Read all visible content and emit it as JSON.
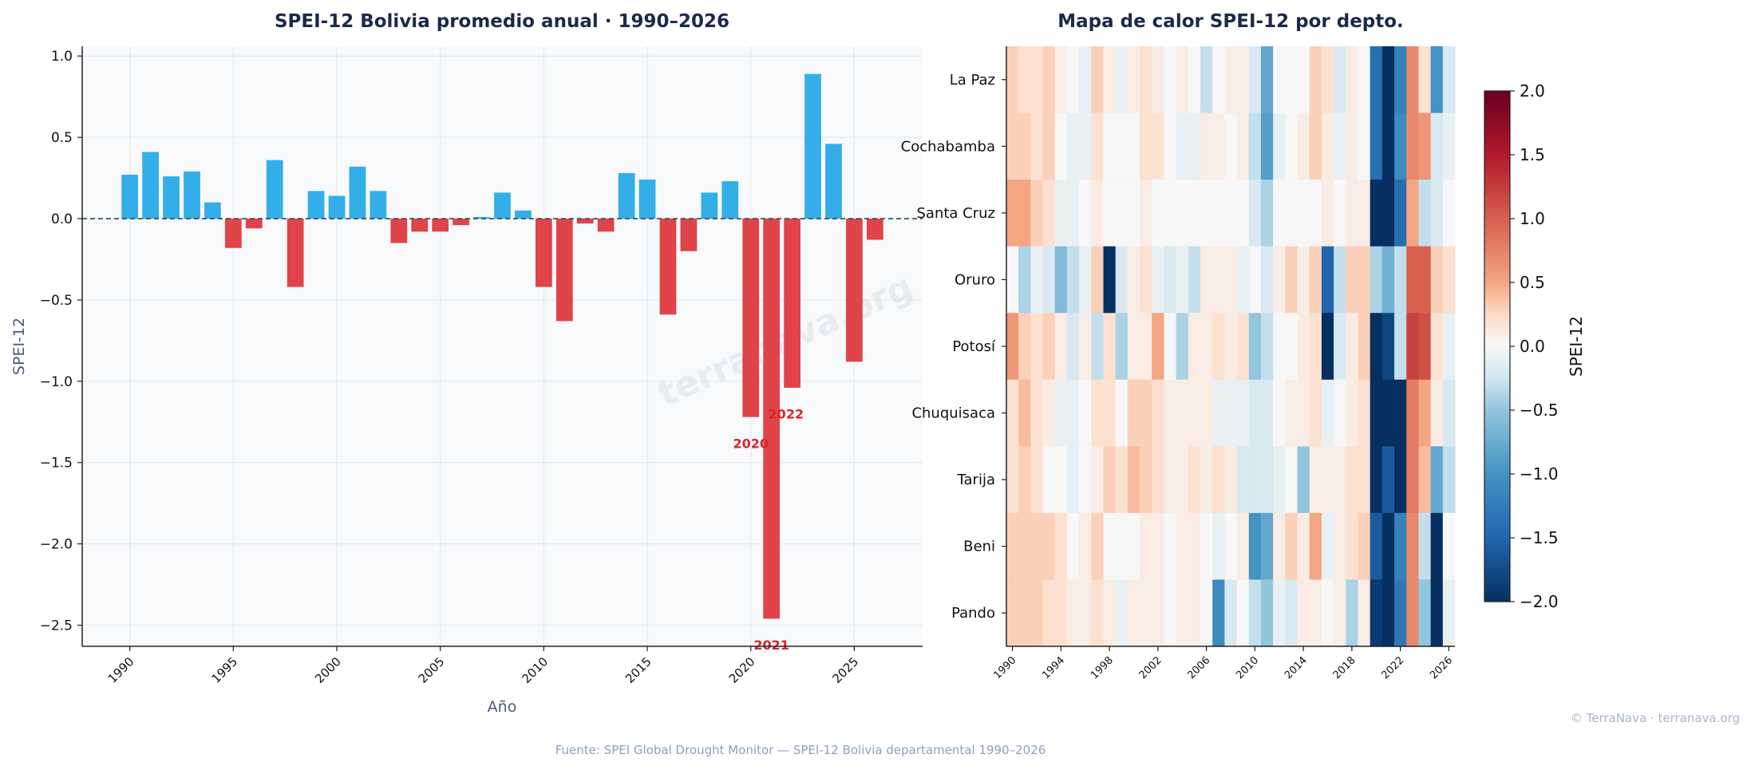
{
  "chart_data": [
    {
      "type": "bar",
      "title": "SPEI-12 Bolivia promedio anual · 1990–2026",
      "xlabel": "Año",
      "ylabel": "SPEI-12",
      "xlim": [
        1987.7,
        2028.3
      ],
      "ylim": [
        -2.63,
        1.06
      ],
      "x_ticks": [
        1990,
        1995,
        2000,
        2005,
        2010,
        2015,
        2020,
        2025
      ],
      "y_ticks": [
        1.0,
        0.5,
        0.0,
        -0.5,
        -1.0,
        -1.5,
        -2.0,
        -2.5
      ],
      "y_tick_labels": [
        "1.0",
        "0.5",
        "0.0",
        "−0.5",
        "−1.0",
        "−1.5",
        "−2.0",
        "−2.5"
      ],
      "grid": true,
      "reference_line": 0,
      "colors": {
        "positive": "#33aee8",
        "negative": "#e04448",
        "zero_line": "#34495e",
        "annotation": "#d62728"
      },
      "x": [
        1990,
        1991,
        1992,
        1993,
        1994,
        1995,
        1996,
        1997,
        1998,
        1999,
        2000,
        2001,
        2002,
        2003,
        2004,
        2005,
        2006,
        2007,
        2008,
        2009,
        2010,
        2011,
        2012,
        2013,
        2014,
        2015,
        2016,
        2017,
        2018,
        2019,
        2020,
        2021,
        2022,
        2023,
        2024,
        2025,
        2026
      ],
      "values": [
        0.27,
        0.41,
        0.26,
        0.29,
        0.1,
        -0.18,
        -0.06,
        0.36,
        -0.42,
        0.17,
        0.14,
        0.32,
        0.17,
        -0.15,
        -0.08,
        -0.08,
        -0.04,
        0.01,
        0.16,
        0.05,
        -0.42,
        -0.63,
        -0.03,
        -0.08,
        0.28,
        0.24,
        -0.59,
        -0.2,
        0.16,
        0.23,
        -1.22,
        -2.46,
        -1.04,
        0.89,
        0.46,
        -0.88,
        -0.13
      ],
      "annotations": [
        {
          "label": "2020",
          "x": 2020,
          "y": -1.41
        },
        {
          "label": "2021",
          "x": 2021,
          "y": -2.65
        },
        {
          "label": "2022",
          "x": 2021.7,
          "y": -1.23
        }
      ],
      "watermark": "terranava.org"
    },
    {
      "type": "heatmap",
      "title": "Mapa de calor SPEI-12 por depto.",
      "colorbar_label": "SPEI-12",
      "colorbar_range": [
        -2.0,
        2.0
      ],
      "colorbar_ticks": [
        2.0,
        1.5,
        1.0,
        0.5,
        0.0,
        -0.5,
        -1.0,
        -1.5,
        -2.0
      ],
      "colorbar_tick_labels": [
        "2.0",
        "1.5",
        "1.0",
        "0.5",
        "0.0",
        "−0.5",
        "−1.0",
        "−1.5",
        "−2.0"
      ],
      "colormap": "RdBu_r",
      "x_ticks": [
        1990,
        1994,
        1998,
        2002,
        2006,
        2010,
        2014,
        2018,
        2022,
        2026
      ],
      "x": [
        1990,
        1991,
        1992,
        1993,
        1994,
        1995,
        1996,
        1997,
        1998,
        1999,
        2000,
        2001,
        2002,
        2003,
        2004,
        2005,
        2006,
        2007,
        2008,
        2009,
        2010,
        2011,
        2012,
        2013,
        2014,
        2015,
        2016,
        2017,
        2018,
        2019,
        2020,
        2021,
        2022,
        2023,
        2024,
        2025,
        2026
      ],
      "rows": [
        "La Paz",
        "Cochabamba",
        "Santa Cruz",
        "Oruro",
        "Potosí",
        "Chuquisaca",
        "Tarija",
        "Beni",
        "Pando"
      ],
      "values": [
        [
          0.3,
          0.2,
          0.2,
          0.3,
          0.1,
          0.0,
          -0.1,
          0.3,
          0.1,
          -0.1,
          0.1,
          0.2,
          0.1,
          0.0,
          0.1,
          0.0,
          -0.3,
          0.0,
          0.1,
          0.1,
          -0.2,
          -0.8,
          0.0,
          0.0,
          0.0,
          0.3,
          0.2,
          -0.2,
          0.1,
          0.0,
          -1.4,
          -2.2,
          -1.2,
          0.7,
          0.2,
          -1.0,
          -0.2
        ],
        [
          0.3,
          0.3,
          0.2,
          0.3,
          0.0,
          -0.1,
          -0.1,
          0.2,
          0.0,
          0.0,
          0.0,
          0.2,
          0.2,
          0.0,
          -0.1,
          -0.1,
          0.1,
          0.1,
          0.0,
          0.1,
          -0.3,
          -0.9,
          -0.1,
          0.0,
          0.1,
          0.3,
          0.1,
          -0.1,
          0.1,
          0.0,
          -1.4,
          -2.2,
          -1.1,
          0.7,
          0.6,
          -0.2,
          -0.1
        ],
        [
          0.5,
          0.5,
          0.3,
          0.2,
          -0.1,
          -0.1,
          0.0,
          0.1,
          0.0,
          0.0,
          0.0,
          0.1,
          0.0,
          0.0,
          0.0,
          0.0,
          0.0,
          0.0,
          0.0,
          0.0,
          -0.2,
          -0.4,
          0.0,
          0.0,
          0.0,
          0.0,
          0.1,
          0.0,
          0.1,
          0.1,
          -2.0,
          -2.4,
          -1.4,
          0.5,
          -0.3,
          -0.2,
          0.0
        ],
        [
          0.0,
          -0.4,
          -0.1,
          -0.2,
          -0.6,
          -0.3,
          -0.1,
          0.3,
          -2.4,
          -0.2,
          0.1,
          0.2,
          -0.1,
          -0.2,
          -0.1,
          -0.3,
          0.1,
          0.1,
          0.1,
          -0.1,
          0.0,
          -0.2,
          0.1,
          0.3,
          0.1,
          0.3,
          -1.5,
          -0.3,
          0.3,
          0.3,
          -0.4,
          -0.7,
          -0.3,
          1.0,
          1.0,
          0.3,
          0.2
        ],
        [
          0.6,
          0.3,
          0.2,
          0.3,
          0.1,
          -0.2,
          0.1,
          -0.3,
          0.2,
          -0.4,
          0.1,
          0.1,
          0.5,
          0.0,
          -0.4,
          0.1,
          0.1,
          0.2,
          0.1,
          0.2,
          -0.5,
          -0.3,
          0.0,
          0.0,
          0.1,
          0.2,
          -2.2,
          -0.2,
          0.1,
          0.3,
          -2.0,
          -1.8,
          -0.3,
          1.2,
          1.1,
          0.2,
          -0.1
        ],
        [
          0.2,
          0.4,
          0.2,
          0.1,
          -0.1,
          -0.1,
          0.0,
          0.2,
          0.2,
          0.0,
          0.3,
          0.3,
          0.2,
          0.1,
          0.1,
          0.1,
          0.1,
          -0.1,
          -0.1,
          -0.1,
          -0.2,
          -0.2,
          0.0,
          0.1,
          0.1,
          0.2,
          -0.1,
          0.0,
          0.1,
          0.2,
          -2.2,
          -2.3,
          -2.4,
          0.8,
          0.5,
          0.1,
          -0.2
        ],
        [
          0.2,
          0.3,
          0.2,
          0.0,
          0.0,
          -0.1,
          0.0,
          0.1,
          0.3,
          0.2,
          0.4,
          0.3,
          0.2,
          0.1,
          0.1,
          0.2,
          0.1,
          0.2,
          0.1,
          -0.2,
          -0.2,
          -0.2,
          -0.1,
          0.0,
          -0.5,
          0.1,
          0.1,
          0.1,
          0.2,
          0.2,
          -2.1,
          -1.6,
          -2.3,
          0.8,
          0.4,
          -0.8,
          -0.3
        ],
        [
          0.3,
          0.3,
          0.3,
          0.3,
          0.2,
          0.0,
          0.1,
          0.3,
          0.0,
          0.0,
          0.0,
          0.1,
          0.1,
          0.0,
          0.1,
          0.1,
          0.0,
          -0.1,
          0.0,
          0.1,
          -1.0,
          -0.8,
          0.1,
          0.3,
          0.1,
          0.5,
          -0.1,
          0.1,
          0.2,
          0.3,
          -1.6,
          -2.2,
          -1.2,
          0.7,
          -0.3,
          -2.3,
          0.0
        ],
        [
          0.3,
          0.3,
          0.3,
          0.2,
          0.2,
          0.1,
          0.1,
          0.2,
          0.1,
          -0.1,
          0.1,
          0.1,
          0.1,
          0.0,
          0.1,
          0.1,
          0.0,
          -1.1,
          -0.2,
          0.0,
          -0.3,
          -0.5,
          -0.1,
          -0.2,
          0.1,
          0.1,
          0.0,
          0.1,
          -0.4,
          0.1,
          -1.9,
          -2.2,
          -1.3,
          0.7,
          -0.5,
          -2.4,
          -0.1
        ]
      ]
    }
  ],
  "footer": {
    "source": "Fuente: SPEI Global Drought Monitor — SPEI-12 Bolivia departamental 1990–2026",
    "credit": "© TerraNava · terranava.org"
  }
}
